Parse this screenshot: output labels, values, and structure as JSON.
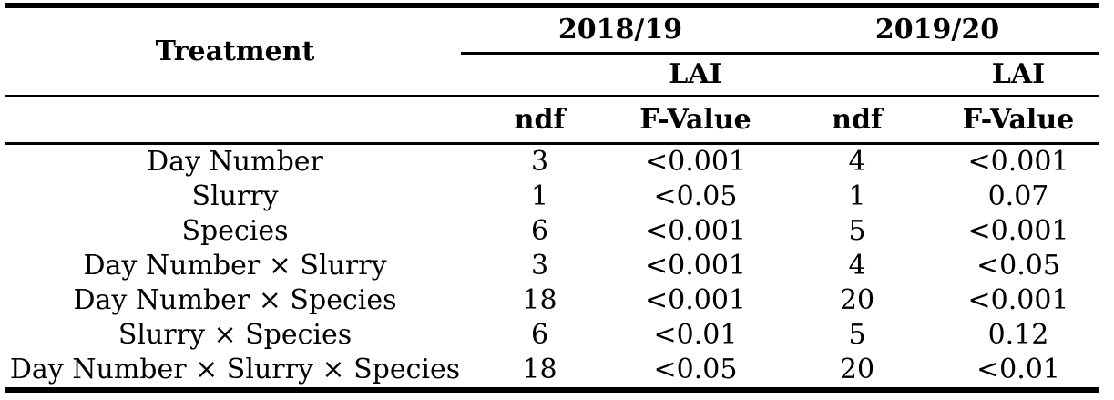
{
  "colors": {
    "background": "#ffffff",
    "text": "#000000",
    "rule": "#000000"
  },
  "table": {
    "treatment_header": "Treatment",
    "year_groups": [
      {
        "year": "2018/19",
        "measure": "LAI"
      },
      {
        "year": "2019/20",
        "measure": "LAI"
      }
    ],
    "stat_headers": [
      "ndf",
      "F-Value",
      "ndf",
      "F-Value"
    ],
    "rows": [
      {
        "treatment": "Day Number",
        "values": [
          "3",
          "<0.001",
          "4",
          "<0.001"
        ]
      },
      {
        "treatment": "Slurry",
        "values": [
          "1",
          "<0.05",
          "1",
          "0.07"
        ]
      },
      {
        "treatment": "Species",
        "values": [
          "6",
          "<0.001",
          "5",
          "<0.001"
        ]
      },
      {
        "treatment": "Day Number × Slurry",
        "values": [
          "3",
          "<0.001",
          "4",
          "<0.05"
        ]
      },
      {
        "treatment": "Day Number × Species",
        "values": [
          "18",
          "<0.001",
          "20",
          "<0.001"
        ]
      },
      {
        "treatment": "Slurry × Species",
        "values": [
          "6",
          "<0.01",
          "5",
          "0.12"
        ]
      },
      {
        "treatment": "Day Number × Slurry × Species",
        "values": [
          "18",
          "<0.05",
          "20",
          "<0.01"
        ]
      }
    ]
  }
}
